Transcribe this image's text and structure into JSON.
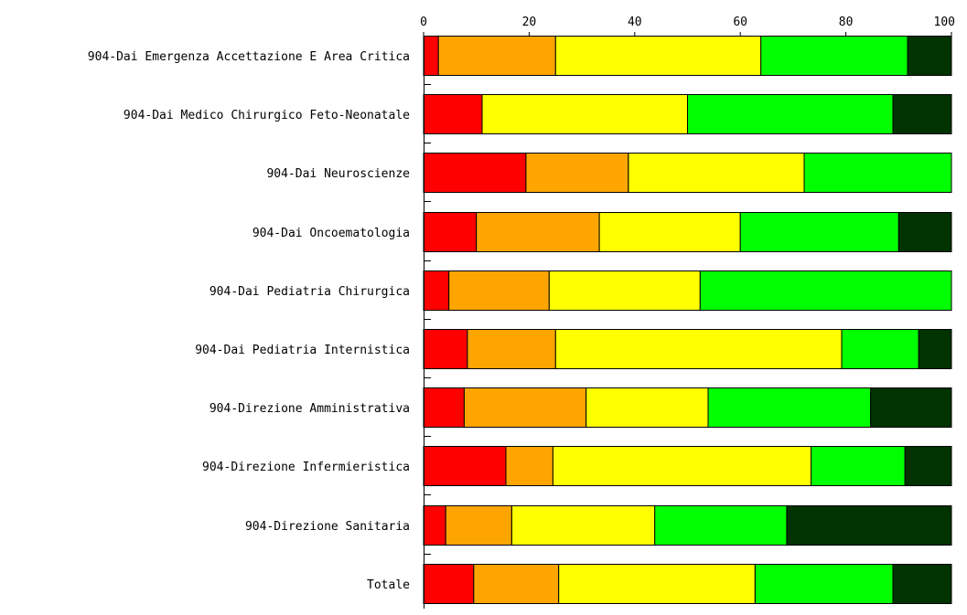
{
  "chart_data": {
    "type": "bar",
    "orientation": "horizontal",
    "stacked": true,
    "title": "",
    "xlabel": "",
    "ylabel": "",
    "xlim": [
      0,
      100
    ],
    "xticks": [
      "0",
      "20",
      "40",
      "60",
      "80",
      "100"
    ],
    "grid": false,
    "legend": "none",
    "categories": [
      "904-Dai Emergenza Accettazione E Area Critica",
      "904-Dai Medico Chirurgico Feto-Neonatale",
      "904-Dai Neuroscienze",
      "904-Dai Oncoematologia",
      "904-Dai Pediatria Chirurgica",
      "904-Dai Pediatria Internistica",
      "904-Direzione Amministrativa",
      "904-Direzione Infermieristica",
      "904-Direzione Sanitaria",
      "Totale"
    ],
    "series": [
      {
        "color": "#ff0000",
        "values": [
          2.8,
          11.1,
          19.4,
          10.0,
          4.8,
          8.3,
          7.7,
          15.6,
          4.2,
          9.5
        ]
      },
      {
        "color": "#ffa500",
        "values": [
          22.2,
          0,
          19.4,
          23.3,
          19.0,
          16.7,
          23.1,
          8.9,
          12.5,
          16.1
        ]
      },
      {
        "color": "#ffff00",
        "values": [
          38.9,
          38.9,
          33.3,
          26.7,
          28.6,
          54.2,
          23.1,
          48.9,
          27.1,
          37.2
        ]
      },
      {
        "color": "#00ff00",
        "values": [
          27.8,
          38.9,
          27.9,
          30.0,
          47.6,
          14.6,
          30.8,
          17.8,
          25.0,
          26.1
        ]
      },
      {
        "color": "#003300",
        "values": [
          8.3,
          11.1,
          0,
          10.0,
          0,
          6.2,
          15.3,
          8.8,
          31.2,
          11.1
        ]
      }
    ]
  }
}
